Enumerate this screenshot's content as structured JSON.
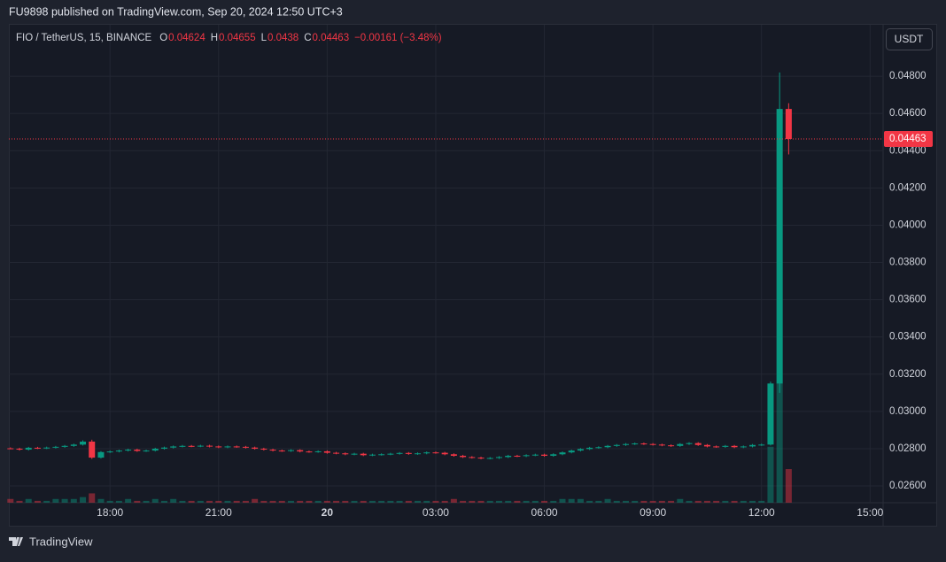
{
  "header": {
    "publisher": "FU9898 published on TradingView.com, Sep 20, 2024 12:50 UTC+3"
  },
  "footer": {
    "brand": "TradingView"
  },
  "chart_data": {
    "type": "candlestick",
    "symbol": "FIO / TetherUS, 15, BINANCE",
    "currency": "USDT",
    "legend": {
      "o_label": "O",
      "o": 0.04624,
      "h_label": "H",
      "h": 0.04655,
      "l_label": "L",
      "l": 0.0438,
      "c_label": "C",
      "c": 0.04463,
      "change": "−0.00161 (−3.48%)"
    },
    "up_color": "#089981",
    "down_color": "#f23645",
    "x": [
      "15:15",
      "15:30",
      "15:45",
      "16:00",
      "16:15",
      "16:30",
      "16:45",
      "17:00",
      "17:15",
      "17:30",
      "17:45",
      "18:00",
      "18:15",
      "18:30",
      "18:45",
      "19:00",
      "19:15",
      "19:30",
      "19:45",
      "20:00",
      "20:15",
      "20:30",
      "20:45",
      "21:00",
      "21:15",
      "21:30",
      "21:45",
      "22:00",
      "22:15",
      "22:30",
      "22:45",
      "23:00",
      "23:15",
      "23:30",
      "23:45",
      "00:00",
      "00:15",
      "00:30",
      "00:45",
      "01:00",
      "01:15",
      "01:30",
      "01:45",
      "02:00",
      "02:15",
      "02:30",
      "02:45",
      "03:00",
      "03:15",
      "03:30",
      "03:45",
      "04:00",
      "04:15",
      "04:30",
      "04:45",
      "05:00",
      "05:15",
      "05:30",
      "05:45",
      "06:00",
      "06:15",
      "06:30",
      "06:45",
      "07:00",
      "07:15",
      "07:30",
      "07:45",
      "08:00",
      "08:15",
      "08:30",
      "08:45",
      "09:00",
      "09:15",
      "09:30",
      "09:45",
      "10:00",
      "10:15",
      "10:30",
      "10:45",
      "11:00",
      "11:15",
      "11:30",
      "11:45",
      "12:00",
      "12:15",
      "12:30",
      "12:45"
    ],
    "open": [
      0.02802,
      0.028,
      0.02795,
      0.02805,
      0.02803,
      0.02806,
      0.0281,
      0.02815,
      0.02822,
      0.02838,
      0.02752,
      0.02782,
      0.02785,
      0.0279,
      0.02795,
      0.02788,
      0.0279,
      0.028,
      0.02806,
      0.02812,
      0.02815,
      0.02813,
      0.02816,
      0.02812,
      0.02808,
      0.02812,
      0.0281,
      0.02806,
      0.028,
      0.02795,
      0.0279,
      0.02788,
      0.02792,
      0.02785,
      0.02783,
      0.02786,
      0.02778,
      0.02775,
      0.0277,
      0.02773,
      0.02765,
      0.02768,
      0.0277,
      0.02773,
      0.02777,
      0.02772,
      0.02775,
      0.0278,
      0.02778,
      0.0277,
      0.02762,
      0.02755,
      0.02752,
      0.02748,
      0.0275,
      0.02755,
      0.02762,
      0.0276,
      0.02765,
      0.02768,
      0.02762,
      0.0277,
      0.0278,
      0.0279,
      0.02798,
      0.02805,
      0.02808,
      0.02815,
      0.0282,
      0.02825,
      0.02828,
      0.02825,
      0.02822,
      0.02818,
      0.02815,
      0.02825,
      0.0283,
      0.0282,
      0.02812,
      0.0281,
      0.02815,
      0.02808,
      0.02812,
      0.0282,
      0.02822,
      0.0315,
      0.04624
    ],
    "high": [
      0.02807,
      0.02805,
      0.0281,
      0.0281,
      0.02811,
      0.02815,
      0.0282,
      0.02827,
      0.02845,
      0.02848,
      0.02787,
      0.0279,
      0.02795,
      0.028,
      0.028,
      0.02795,
      0.02805,
      0.02811,
      0.02817,
      0.0282,
      0.0282,
      0.02821,
      0.02821,
      0.02817,
      0.02817,
      0.02817,
      0.02815,
      0.02811,
      0.02805,
      0.028,
      0.02795,
      0.02797,
      0.02797,
      0.0279,
      0.02791,
      0.02791,
      0.02783,
      0.0278,
      0.02778,
      0.02778,
      0.02773,
      0.02775,
      0.02778,
      0.02782,
      0.02782,
      0.0278,
      0.02785,
      0.02785,
      0.02783,
      0.02775,
      0.02767,
      0.0276,
      0.02757,
      0.02755,
      0.0276,
      0.02767,
      0.02767,
      0.0277,
      0.02773,
      0.02773,
      0.02775,
      0.02785,
      0.02795,
      0.02803,
      0.0281,
      0.02813,
      0.0282,
      0.02825,
      0.0283,
      0.02833,
      0.02833,
      0.0283,
      0.02827,
      0.02823,
      0.0283,
      0.02835,
      0.02835,
      0.02825,
      0.02817,
      0.0282,
      0.0282,
      0.02817,
      0.02825,
      0.02827,
      0.0316,
      0.0482,
      0.04655
    ],
    "low": [
      0.02797,
      0.0279,
      0.0279,
      0.02798,
      0.02798,
      0.02801,
      0.02805,
      0.0281,
      0.02817,
      0.02745,
      0.02747,
      0.02777,
      0.0278,
      0.02785,
      0.02783,
      0.02783,
      0.02785,
      0.02795,
      0.02801,
      0.02807,
      0.02808,
      0.02808,
      0.02807,
      0.02803,
      0.02803,
      0.02805,
      0.02801,
      0.02795,
      0.0279,
      0.02785,
      0.02783,
      0.02783,
      0.0278,
      0.02778,
      0.02778,
      0.02773,
      0.0277,
      0.02765,
      0.02765,
      0.0276,
      0.0276,
      0.02763,
      0.02765,
      0.02768,
      0.02767,
      0.02767,
      0.0277,
      0.02773,
      0.02765,
      0.02757,
      0.0275,
      0.02747,
      0.02743,
      0.02743,
      0.02745,
      0.0275,
      0.02755,
      0.02755,
      0.0276,
      0.02757,
      0.02757,
      0.02765,
      0.02775,
      0.02785,
      0.02793,
      0.028,
      0.02803,
      0.0281,
      0.02815,
      0.0282,
      0.0282,
      0.02817,
      0.02813,
      0.0281,
      0.0281,
      0.0282,
      0.02815,
      0.02807,
      0.02805,
      0.02805,
      0.02803,
      0.02803,
      0.02807,
      0.02815,
      0.02817,
      0.031,
      0.0438
    ],
    "close": [
      0.028,
      0.02795,
      0.02805,
      0.02803,
      0.02806,
      0.0281,
      0.02815,
      0.02822,
      0.02838,
      0.02752,
      0.02782,
      0.02785,
      0.0279,
      0.02795,
      0.02788,
      0.0279,
      0.028,
      0.02806,
      0.02812,
      0.02815,
      0.02813,
      0.02816,
      0.02812,
      0.02808,
      0.02812,
      0.0281,
      0.02806,
      0.028,
      0.02795,
      0.0279,
      0.02788,
      0.02792,
      0.02785,
      0.02783,
      0.02786,
      0.02778,
      0.02775,
      0.0277,
      0.02773,
      0.02765,
      0.02768,
      0.0277,
      0.02773,
      0.02777,
      0.02772,
      0.02775,
      0.0278,
      0.02778,
      0.0277,
      0.02762,
      0.02755,
      0.02752,
      0.02748,
      0.0275,
      0.02755,
      0.02762,
      0.0276,
      0.02765,
      0.02768,
      0.02762,
      0.0277,
      0.0278,
      0.0279,
      0.02798,
      0.02805,
      0.02808,
      0.02815,
      0.0282,
      0.02825,
      0.02828,
      0.02825,
      0.02822,
      0.02818,
      0.02815,
      0.02825,
      0.0283,
      0.0282,
      0.02812,
      0.0281,
      0.02815,
      0.02808,
      0.02812,
      0.0282,
      0.02822,
      0.0315,
      0.04624,
      0.04463
    ],
    "volume": [
      2,
      1,
      2,
      1,
      1,
      2,
      2,
      2,
      3,
      5,
      2,
      1,
      1,
      2,
      1,
      1,
      2,
      1,
      2,
      1,
      1,
      1,
      1,
      1,
      1,
      1,
      1,
      2,
      1,
      1,
      1,
      1,
      1,
      1,
      1,
      1,
      1,
      1,
      1,
      1,
      1,
      1,
      1,
      1,
      1,
      1,
      1,
      1,
      1,
      2,
      1,
      1,
      1,
      1,
      1,
      1,
      1,
      1,
      1,
      1,
      1,
      2,
      2,
      2,
      1,
      1,
      2,
      1,
      1,
      1,
      1,
      1,
      1,
      1,
      2,
      1,
      1,
      1,
      1,
      1,
      1,
      1,
      1,
      1,
      30,
      64,
      18
    ],
    "last_price": 0.04463,
    "ylim": [
      0.0251,
      0.05076
    ],
    "yticks": [
      {
        "value": 0.026,
        "label": "0.02600"
      },
      {
        "value": 0.028,
        "label": "0.02800"
      },
      {
        "value": 0.03,
        "label": "0.03000"
      },
      {
        "value": 0.032,
        "label": "0.03200"
      },
      {
        "value": 0.034,
        "label": "0.03400"
      },
      {
        "value": 0.036,
        "label": "0.03600"
      },
      {
        "value": 0.038,
        "label": "0.03800"
      },
      {
        "value": 0.04,
        "label": "0.04000"
      },
      {
        "value": 0.042,
        "label": "0.04200"
      },
      {
        "value": 0.044,
        "label": "0.04400"
      },
      {
        "value": 0.046,
        "label": "0.04600"
      },
      {
        "value": 0.048,
        "label": "0.04800"
      }
    ],
    "xticks": [
      "18:00",
      "21:00",
      {
        "value": "00:00",
        "label": "20"
      },
      "03:00",
      "06:00",
      "09:00",
      "12:00",
      "15:00"
    ],
    "grid": true
  }
}
